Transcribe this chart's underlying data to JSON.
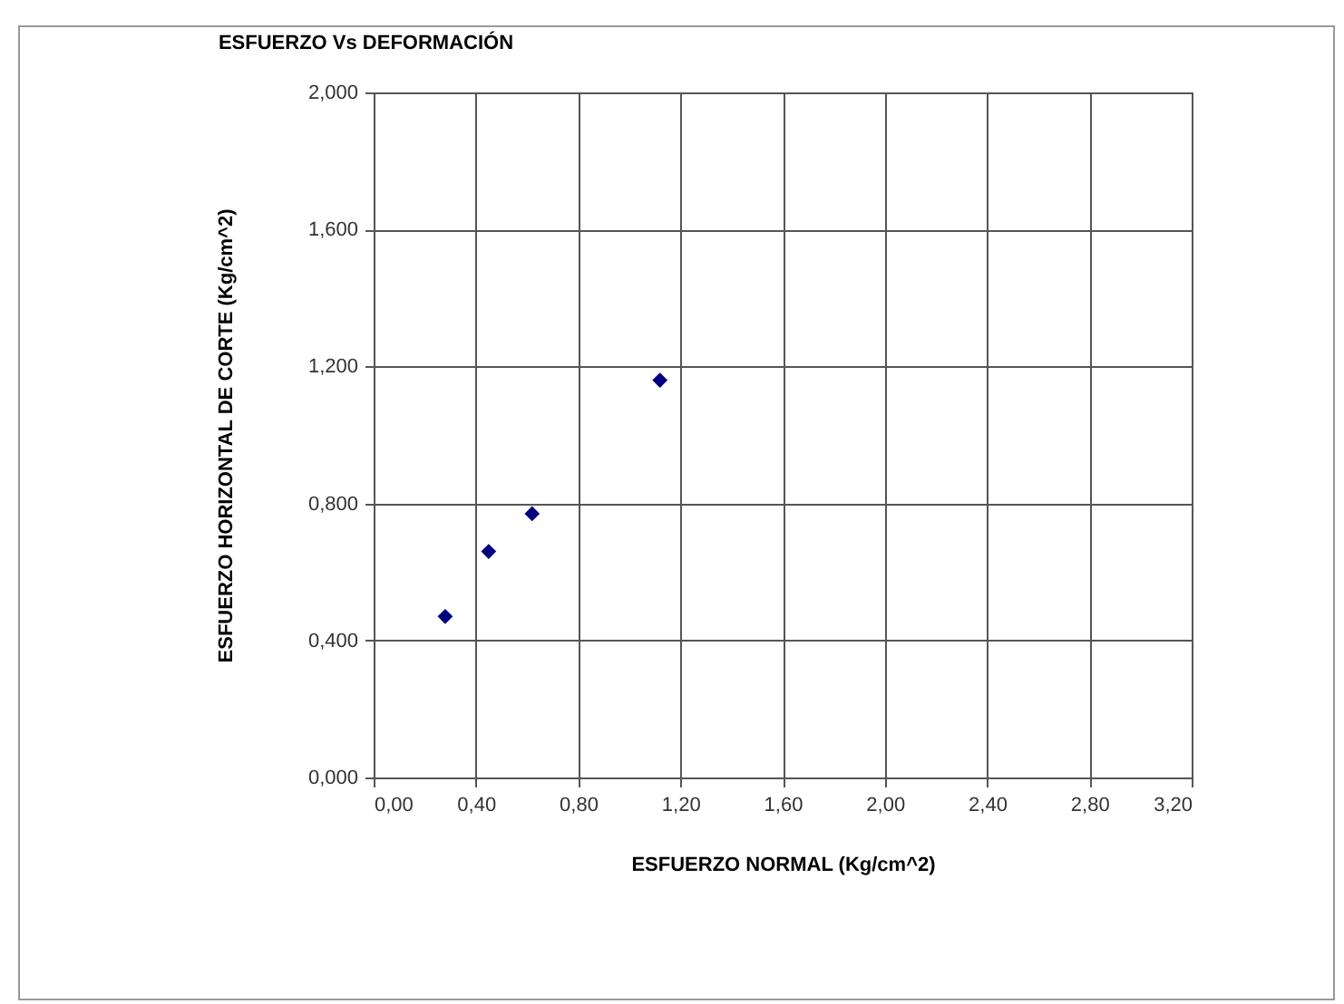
{
  "chart_data": {
    "type": "scatter",
    "title": "ESFUERZO Vs DEFORMACIÓN",
    "xlabel": "ESFUERZO NORMAL  (Kg/cm^2)",
    "ylabel": "ESFUERZO HORIZONTAL  DE CORTE (Kg/cm^2)",
    "x": [
      0.28,
      0.45,
      0.62,
      1.12
    ],
    "series": [
      {
        "color": "#000080",
        "values": [
          0.47,
          0.66,
          0.77,
          1.16
        ]
      }
    ],
    "xlim": [
      0,
      3.2
    ],
    "ylim": [
      0,
      2
    ],
    "xticks": [
      {
        "value": 0,
        "label": "0,00"
      },
      {
        "value": 0.4,
        "label": "0,40"
      },
      {
        "value": 0.8,
        "label": "0,80"
      },
      {
        "value": 1.2,
        "label": "1,20"
      },
      {
        "value": 1.6,
        "label": "1,60"
      },
      {
        "value": 2,
        "label": "2,00"
      },
      {
        "value": 2.4,
        "label": "2,40"
      },
      {
        "value": 2.8,
        "label": "2,80"
      },
      {
        "value": 3.2,
        "label": "3,20"
      }
    ],
    "yticks": [
      {
        "value": 0,
        "label": "0,000"
      },
      {
        "value": 0.4,
        "label": "0,400"
      },
      {
        "value": 0.8,
        "label": "0,800"
      },
      {
        "value": 1.2,
        "label": "1,200"
      },
      {
        "value": 1.6,
        "label": "1,600"
      },
      {
        "value": 2,
        "label": "2,000"
      }
    ],
    "grid": true,
    "marker": "diamond"
  }
}
